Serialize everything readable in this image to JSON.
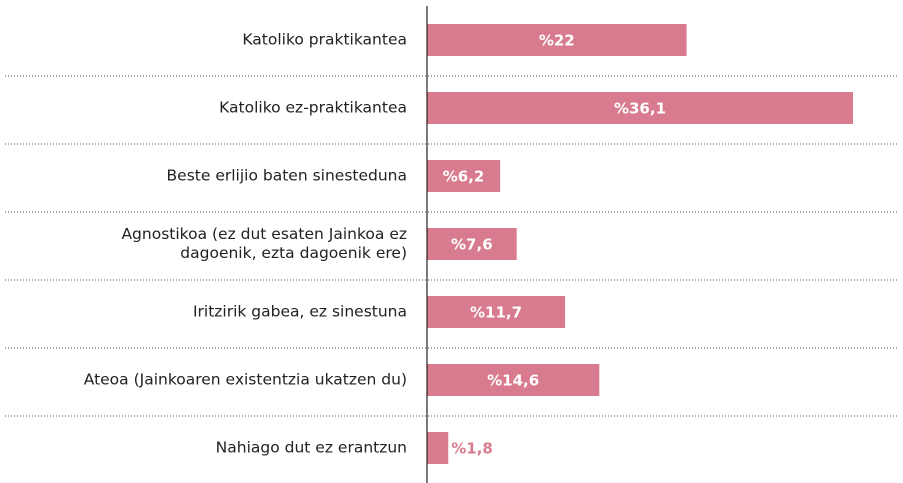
{
  "chart_data": {
    "type": "bar",
    "orientation": "horizontal",
    "categories": [
      "Katoliko praktikantea",
      "Katoliko ez-praktikantea",
      "Beste erlijio baten sinesteduna",
      "Agnostikoa (ez dut esaten Jainkoa ez\ndagoenik, ezta dagoenik ere)",
      "Iritzirik gabea, ez sinestuna",
      "Ateoa (Jainkoaren existentzia ukatzen du)",
      "Nahiago dut ez erantzun"
    ],
    "values": [
      22,
      36.1,
      6.2,
      7.6,
      11.7,
      14.6,
      1.8
    ],
    "value_labels": [
      "%22",
      "%36,1",
      "%6,2",
      "%7,6",
      "%11,7",
      "%14,6",
      "%1,8"
    ],
    "color": "#d97b8e"
  }
}
